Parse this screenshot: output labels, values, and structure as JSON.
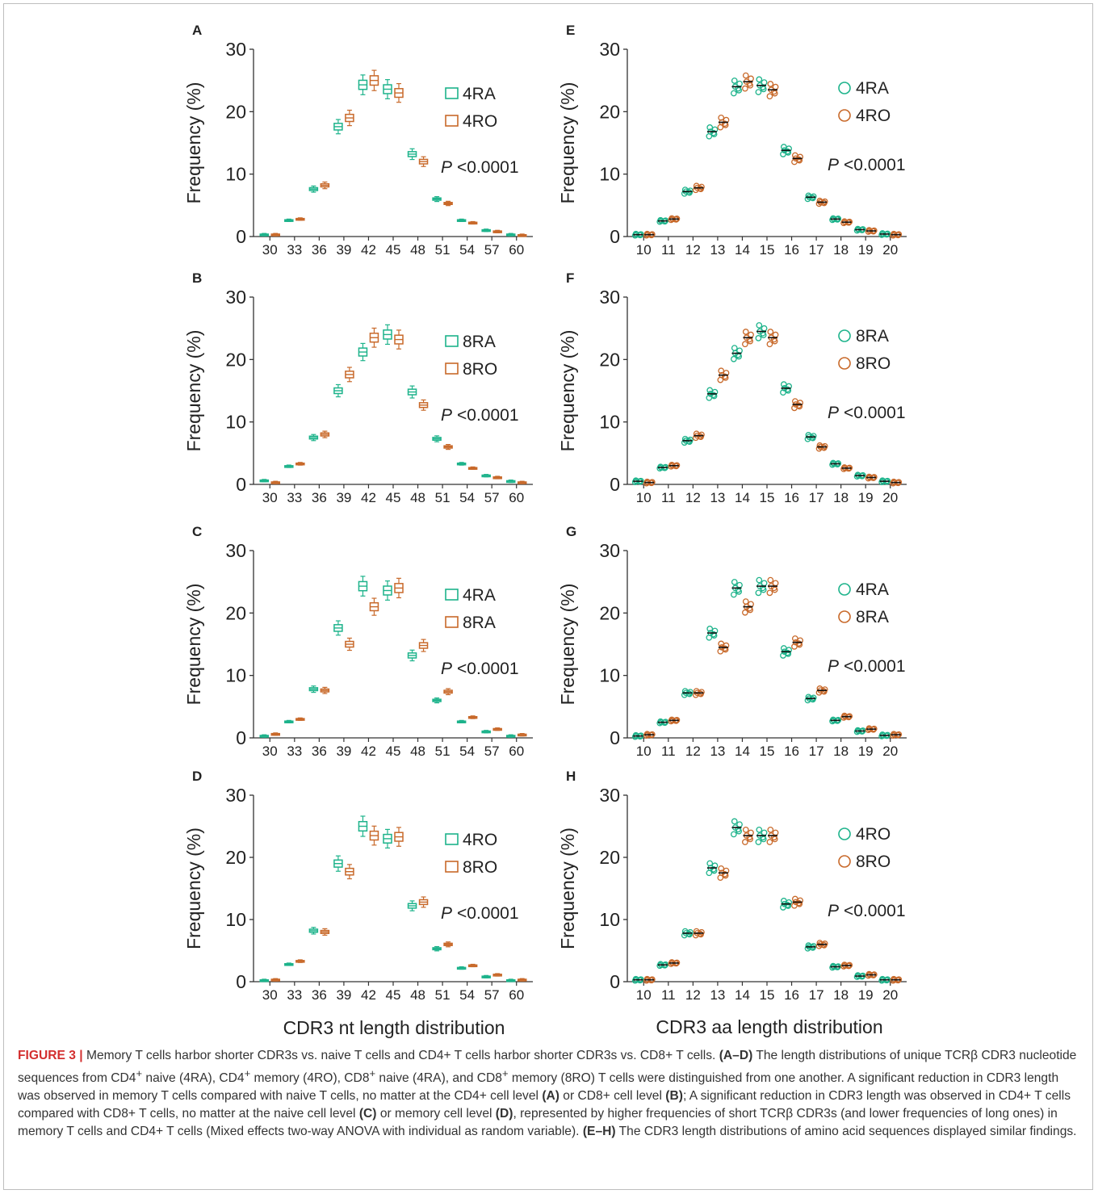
{
  "figure": {
    "xlabel_left": "CDR3 nt length distribution",
    "xlabel_right": "CDR3 aa length distribution",
    "p_text": "P",
    "p_value": "<0.0001"
  },
  "colors": {
    "green": "#1db38b",
    "orange": "#c8692a",
    "axis": "#333333"
  },
  "caption": {
    "label": "FIGURE 3 |",
    "parts": [
      {
        "t": " Memory T cells harbor shorter CDR3s vs. naive T cells and CD4+ T cells harbor shorter CDR3s vs. CD8+ T cells. "
      },
      {
        "t": "(A–D)",
        "b": true
      },
      {
        "t": " The length distributions of unique TCRβ CDR3 nucleotide sequences from CD4"
      },
      {
        "t": "+",
        "sup": true
      },
      {
        "t": " naive (4RA), CD4"
      },
      {
        "t": "+",
        "sup": true
      },
      {
        "t": " memory (4RO), CD8"
      },
      {
        "t": "+",
        "sup": true
      },
      {
        "t": " naive (4RA), and CD8"
      },
      {
        "t": "+",
        "sup": true
      },
      {
        "t": " memory (8RO) T cells were distinguished from one another. A significant reduction in CDR3 length was observed in memory T cells compared with naive T cells, no matter at the CD4+ cell level "
      },
      {
        "t": "(A)",
        "b": true
      },
      {
        "t": " or CD8+ cell level "
      },
      {
        "t": "(B)",
        "b": true
      },
      {
        "t": "; A significant reduction in CDR3 length was observed in CD4+ T cells compared with CD8+ T cells, no matter at the naive cell level "
      },
      {
        "t": "(C)",
        "b": true
      },
      {
        "t": " or memory cell level "
      },
      {
        "t": "(D)",
        "b": true
      },
      {
        "t": ", represented by higher frequencies of short TCRβ CDR3s (and lower frequencies of long ones) in memory T cells and CD4+ T cells (Mixed effects two-way ANOVA with individual as random variable). "
      },
      {
        "t": "(E–H)",
        "b": true
      },
      {
        "t": " The CDR3 length distributions of amino acid sequences displayed similar findings."
      }
    ]
  },
  "chart_data": [
    {
      "panel": "A",
      "type": "box",
      "ylabel": "Frequency (%)",
      "ylim": [
        0,
        30
      ],
      "yticks": [
        0,
        10,
        20,
        30
      ],
      "categories": [
        "30",
        "33",
        "36",
        "39",
        "42",
        "45",
        "48",
        "51",
        "54",
        "57",
        "60"
      ],
      "series": [
        {
          "name": "4RA",
          "color": "green",
          "values": [
            0.3,
            2.6,
            7.6,
            17.6,
            24.3,
            23.6,
            13.2,
            6.0,
            2.6,
            1.0,
            0.3
          ]
        },
        {
          "name": "4RO",
          "color": "orange",
          "values": [
            0.3,
            2.8,
            8.2,
            19.0,
            25.0,
            23.0,
            12.0,
            5.3,
            2.2,
            0.8,
            0.2
          ]
        }
      ]
    },
    {
      "panel": "B",
      "type": "box",
      "ylabel": "Frequency (%)",
      "ylim": [
        0,
        30
      ],
      "yticks": [
        0,
        10,
        20,
        30
      ],
      "categories": [
        "30",
        "33",
        "36",
        "39",
        "42",
        "45",
        "48",
        "51",
        "54",
        "57",
        "60"
      ],
      "series": [
        {
          "name": "8RA",
          "color": "green",
          "values": [
            0.6,
            2.9,
            7.5,
            15.0,
            21.2,
            24.0,
            14.8,
            7.3,
            3.3,
            1.4,
            0.5
          ]
        },
        {
          "name": "8RO",
          "color": "orange",
          "values": [
            0.3,
            3.3,
            8.0,
            17.6,
            23.5,
            23.2,
            12.7,
            6.0,
            2.6,
            1.1,
            0.3
          ]
        }
      ]
    },
    {
      "panel": "C",
      "type": "box",
      "ylabel": "Frequency (%)",
      "ylim": [
        0,
        30
      ],
      "yticks": [
        0,
        10,
        20,
        30
      ],
      "categories": [
        "30",
        "33",
        "36",
        "39",
        "42",
        "45",
        "48",
        "51",
        "54",
        "57",
        "60"
      ],
      "series": [
        {
          "name": "4RA",
          "color": "green",
          "values": [
            0.3,
            2.6,
            7.8,
            17.6,
            24.3,
            23.6,
            13.2,
            6.0,
            2.6,
            1.0,
            0.3
          ]
        },
        {
          "name": "8RA",
          "color": "orange",
          "values": [
            0.6,
            3.0,
            7.6,
            15.0,
            21.0,
            24.0,
            14.8,
            7.4,
            3.3,
            1.4,
            0.5
          ]
        }
      ]
    },
    {
      "panel": "D",
      "type": "box",
      "ylabel": "Frequency (%)",
      "ylim": [
        0,
        30
      ],
      "yticks": [
        0,
        10,
        20,
        30
      ],
      "categories": [
        "30",
        "33",
        "36",
        "39",
        "42",
        "45",
        "48",
        "51",
        "54",
        "57",
        "60"
      ],
      "series": [
        {
          "name": "4RO",
          "color": "green",
          "values": [
            0.2,
            2.8,
            8.2,
            19.0,
            25.0,
            23.0,
            12.2,
            5.3,
            2.2,
            0.8,
            0.2
          ]
        },
        {
          "name": "8RO",
          "color": "orange",
          "values": [
            0.3,
            3.3,
            8.0,
            17.7,
            23.5,
            23.3,
            12.8,
            6.0,
            2.6,
            1.1,
            0.3
          ]
        }
      ]
    },
    {
      "panel": "E",
      "type": "scatter",
      "ylabel": "Frequency (%)",
      "ylim": [
        0,
        30
      ],
      "yticks": [
        0,
        10,
        20,
        30
      ],
      "categories": [
        "10",
        "11",
        "12",
        "13",
        "14",
        "15",
        "16",
        "17",
        "18",
        "19",
        "20"
      ],
      "series": [
        {
          "name": "4RA",
          "color": "green",
          "values": [
            0.3,
            2.5,
            7.2,
            16.8,
            24.0,
            24.2,
            13.8,
            6.3,
            2.8,
            1.1,
            0.4
          ]
        },
        {
          "name": "4RO",
          "color": "orange",
          "values": [
            0.3,
            2.8,
            7.8,
            18.3,
            24.8,
            23.5,
            12.5,
            5.5,
            2.3,
            0.9,
            0.3
          ]
        }
      ]
    },
    {
      "panel": "F",
      "type": "scatter",
      "ylabel": "Frequency (%)",
      "ylim": [
        0,
        30
      ],
      "yticks": [
        0,
        10,
        20,
        30
      ],
      "categories": [
        "10",
        "11",
        "12",
        "13",
        "14",
        "15",
        "16",
        "17",
        "18",
        "19",
        "20"
      ],
      "series": [
        {
          "name": "8RA",
          "color": "green",
          "values": [
            0.5,
            2.7,
            7.0,
            14.5,
            21.0,
            24.5,
            15.4,
            7.6,
            3.3,
            1.4,
            0.5
          ]
        },
        {
          "name": "8RO",
          "color": "orange",
          "values": [
            0.3,
            3.0,
            7.8,
            17.5,
            23.5,
            23.5,
            12.8,
            6.0,
            2.6,
            1.1,
            0.3
          ]
        }
      ]
    },
    {
      "panel": "G",
      "type": "scatter",
      "ylabel": "Frequency (%)",
      "ylim": [
        0,
        30
      ],
      "yticks": [
        0,
        10,
        20,
        30
      ],
      "categories": [
        "10",
        "11",
        "12",
        "13",
        "14",
        "15",
        "16",
        "17",
        "18",
        "19",
        "20"
      ],
      "series": [
        {
          "name": "4RA",
          "color": "green",
          "values": [
            0.3,
            2.5,
            7.2,
            16.8,
            24.0,
            24.3,
            13.8,
            6.3,
            2.8,
            1.1,
            0.4
          ]
        },
        {
          "name": "8RA",
          "color": "orange",
          "values": [
            0.5,
            2.8,
            7.2,
            14.5,
            21.0,
            24.3,
            15.3,
            7.6,
            3.4,
            1.4,
            0.5
          ]
        }
      ]
    },
    {
      "panel": "H",
      "type": "scatter",
      "ylabel": "Frequency (%)",
      "ylim": [
        0,
        30
      ],
      "yticks": [
        0,
        10,
        20,
        30
      ],
      "categories": [
        "10",
        "11",
        "12",
        "13",
        "14",
        "15",
        "16",
        "17",
        "18",
        "19",
        "20"
      ],
      "series": [
        {
          "name": "4RO",
          "color": "green",
          "values": [
            0.3,
            2.7,
            7.8,
            18.3,
            24.8,
            23.5,
            12.5,
            5.6,
            2.4,
            0.9,
            0.3
          ]
        },
        {
          "name": "8RO",
          "color": "orange",
          "values": [
            0.3,
            3.0,
            7.8,
            17.5,
            23.5,
            23.5,
            12.8,
            6.0,
            2.6,
            1.1,
            0.3
          ]
        }
      ]
    }
  ]
}
